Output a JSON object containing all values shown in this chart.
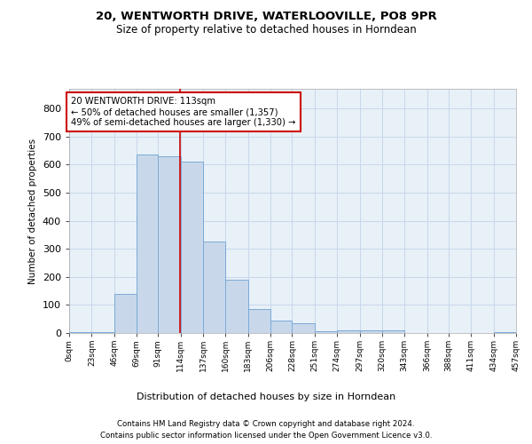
{
  "title1": "20, WENTWORTH DRIVE, WATERLOOVILLE, PO8 9PR",
  "title2": "Size of property relative to detached houses in Horndean",
  "xlabel": "Distribution of detached houses by size in Horndean",
  "ylabel": "Number of detached properties",
  "bin_edges": [
    0,
    23,
    46,
    69,
    91,
    114,
    137,
    160,
    183,
    206,
    228,
    251,
    274,
    297,
    320,
    343,
    366,
    388,
    411,
    434,
    457
  ],
  "bin_labels": [
    "0sqm",
    "23sqm",
    "46sqm",
    "69sqm",
    "91sqm",
    "114sqm",
    "137sqm",
    "160sqm",
    "183sqm",
    "206sqm",
    "228sqm",
    "251sqm",
    "274sqm",
    "297sqm",
    "320sqm",
    "343sqm",
    "366sqm",
    "388sqm",
    "411sqm",
    "434sqm",
    "457sqm"
  ],
  "counts": [
    2,
    2,
    140,
    635,
    630,
    610,
    325,
    190,
    85,
    45,
    35,
    5,
    10,
    10,
    10,
    0,
    0,
    0,
    0,
    2
  ],
  "bar_color": "#c8d8ea",
  "bar_edge_color": "#7aaad8",
  "red_line_x": 113,
  "ylim": [
    0,
    870
  ],
  "yticks": [
    0,
    100,
    200,
    300,
    400,
    500,
    600,
    700,
    800
  ],
  "annotation_title": "20 WENTWORTH DRIVE: 113sqm",
  "annotation_line1": "← 50% of detached houses are smaller (1,357)",
  "annotation_line2": "49% of semi-detached houses are larger (1,330) →",
  "annotation_box_color": "#ffffff",
  "annotation_box_edge": "#cc0000",
  "grid_color": "#c8d8ea",
  "bg_color": "#e8f0f8",
  "footer1": "Contains HM Land Registry data © Crown copyright and database right 2024.",
  "footer2": "Contains public sector information licensed under the Open Government Licence v3.0."
}
